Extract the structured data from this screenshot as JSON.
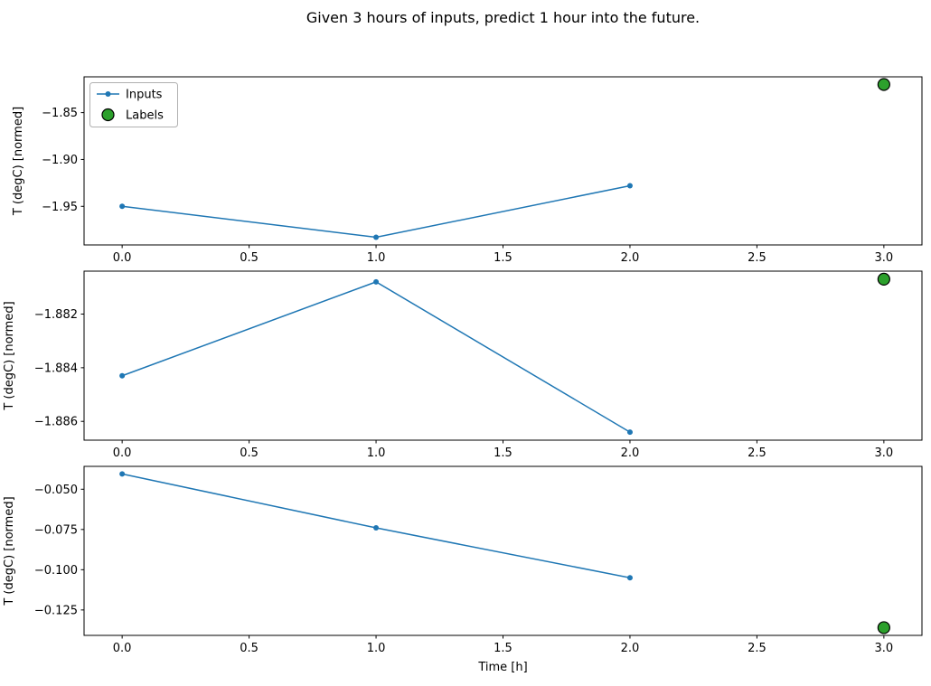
{
  "chart_data": {
    "type": "line",
    "title": "Given 3 hours of inputs, predict 1 hour into the future.",
    "xlabel": "Time [h]",
    "ylabel": "T (degC) [normed]",
    "legend": {
      "inputs": "Inputs",
      "labels": "Labels",
      "position": "upper left of first subplot"
    },
    "colors": {
      "inputs": "#1f77b4",
      "labels_fill": "#2ca02c",
      "labels_edge": "#000000",
      "frame": "#000000",
      "legend_border": "#b0b0b0"
    },
    "grid": false,
    "xlim": [
      -0.15,
      3.15
    ],
    "x_ticks": [
      {
        "v": 0.0,
        "label": "0.0"
      },
      {
        "v": 0.5,
        "label": "0.5"
      },
      {
        "v": 1.0,
        "label": "1.0"
      },
      {
        "v": 1.5,
        "label": "1.5"
      },
      {
        "v": 2.0,
        "label": "2.0"
      },
      {
        "v": 2.5,
        "label": "2.5"
      },
      {
        "v": 3.0,
        "label": "3.0"
      }
    ],
    "subplots": [
      {
        "name": "example-1",
        "ylim": [
          -1.9912,
          -1.8118
        ],
        "ylabel_x": 24,
        "y_ticks": [
          {
            "v": -1.85,
            "label": "−1.85"
          },
          {
            "v": -1.9,
            "label": "−1.90"
          },
          {
            "v": -1.95,
            "label": "−1.95"
          }
        ],
        "inputs": {
          "x": [
            0,
            1,
            2
          ],
          "y": [
            -1.95,
            -1.983,
            -1.928
          ]
        },
        "label": {
          "x": 3,
          "y": -1.82
        }
      },
      {
        "name": "example-2",
        "ylim": [
          -1.8867,
          -1.8804
        ],
        "ylabel_x": 14,
        "y_ticks": [
          {
            "v": -1.882,
            "label": "−1.882"
          },
          {
            "v": -1.884,
            "label": "−1.884"
          },
          {
            "v": -1.886,
            "label": "−1.886"
          }
        ],
        "inputs": {
          "x": [
            0,
            1,
            2
          ],
          "y": [
            -1.8843,
            -1.8808,
            -1.8864
          ]
        },
        "label": {
          "x": 3,
          "y": -1.8807
        }
      },
      {
        "name": "example-3",
        "ylim": [
          -0.1408,
          -0.0358
        ],
        "ylabel_x": 14,
        "y_ticks": [
          {
            "v": -0.05,
            "label": "−0.050"
          },
          {
            "v": -0.075,
            "label": "−0.075"
          },
          {
            "v": -0.1,
            "label": "−0.100"
          },
          {
            "v": -0.125,
            "label": "−0.125"
          }
        ],
        "inputs": {
          "x": [
            0,
            1,
            2
          ],
          "y": [
            -0.0405,
            -0.074,
            -0.105
          ]
        },
        "label": {
          "x": 3,
          "y": -0.136
        }
      }
    ]
  }
}
